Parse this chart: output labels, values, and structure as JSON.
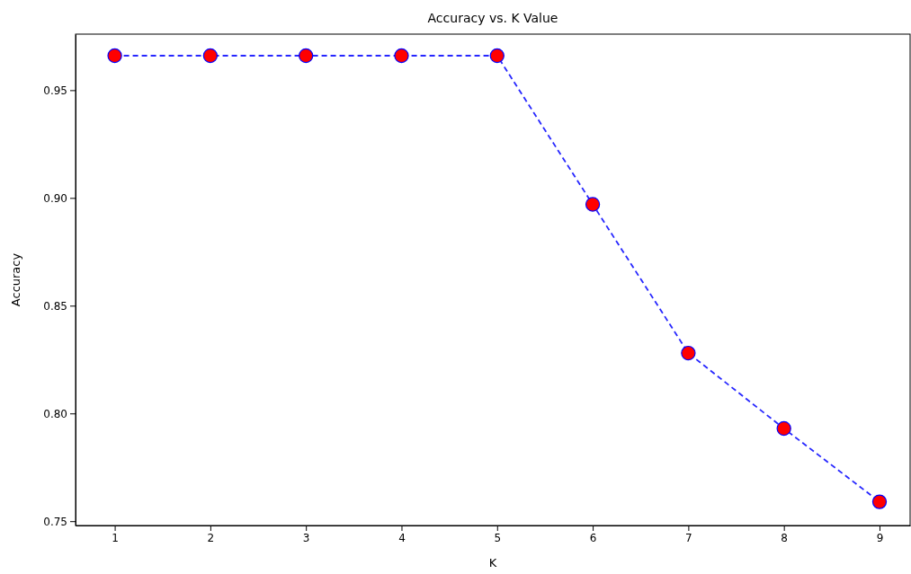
{
  "chart_data": {
    "type": "line",
    "title": "Accuracy vs. K Value",
    "xlabel": "K",
    "ylabel": "Accuracy",
    "x": [
      1,
      2,
      3,
      4,
      5,
      6,
      7,
      8,
      9
    ],
    "series": [
      {
        "color": "#0000ff",
        "values": [
          0.966,
          0.966,
          0.966,
          0.966,
          0.966,
          0.897,
          0.828,
          0.793,
          0.759
        ]
      }
    ],
    "xlim": [
      0.59,
      9.32
    ],
    "xticks": [
      1,
      2,
      3,
      4,
      5,
      6,
      7,
      8,
      9
    ],
    "ylim": [
      0.748,
      0.976
    ],
    "yticks": [
      {
        "value": 0.75,
        "label": "0.75"
      },
      {
        "value": 0.8,
        "label": "0.80"
      },
      {
        "value": 0.85,
        "label": "0.85"
      },
      {
        "value": 0.9,
        "label": "0.90"
      },
      {
        "value": 0.95,
        "label": "0.95"
      }
    ],
    "grid": false,
    "marker": "circle",
    "line_style": "dashed"
  }
}
